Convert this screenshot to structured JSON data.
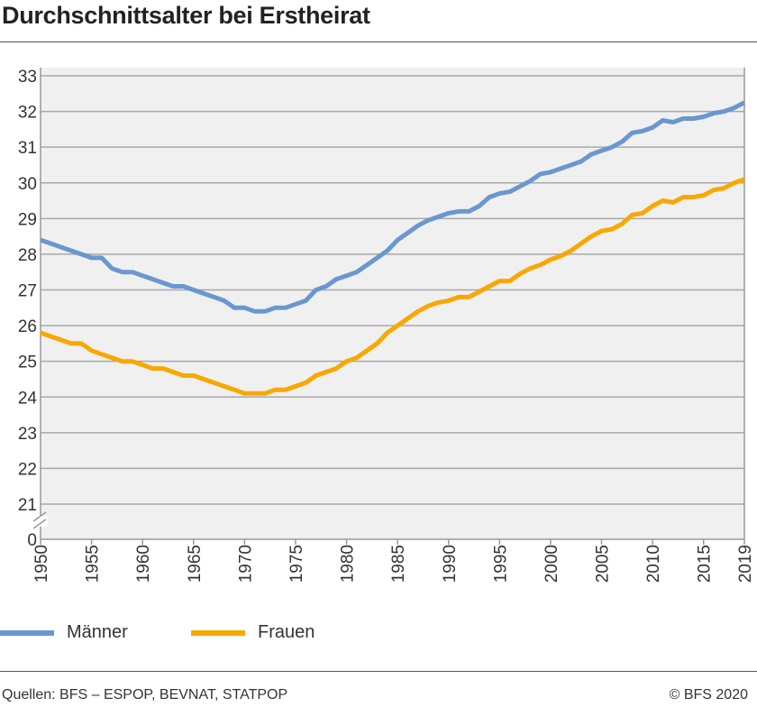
{
  "title": "Durchschnittsalter bei Erstheirat",
  "source": "Quellen: BFS – ESPOP, BEVNAT, STATPOP",
  "copyright": "© BFS 2020",
  "chart_data": {
    "type": "line",
    "title": "Durchschnittsalter bei Erstheirat",
    "xlabel": "",
    "ylabel": "",
    "x": [
      1950,
      1951,
      1952,
      1953,
      1954,
      1955,
      1956,
      1957,
      1958,
      1959,
      1960,
      1961,
      1962,
      1963,
      1964,
      1965,
      1966,
      1967,
      1968,
      1969,
      1970,
      1971,
      1972,
      1973,
      1974,
      1975,
      1976,
      1977,
      1978,
      1979,
      1980,
      1981,
      1982,
      1983,
      1984,
      1985,
      1986,
      1987,
      1988,
      1989,
      1990,
      1991,
      1992,
      1993,
      1994,
      1995,
      1996,
      1997,
      1998,
      1999,
      2000,
      2001,
      2002,
      2003,
      2004,
      2005,
      2006,
      2007,
      2008,
      2009,
      2010,
      2011,
      2012,
      2013,
      2014,
      2015,
      2016,
      2017,
      2018,
      2019
    ],
    "x_ticks": [
      "1950",
      "1955",
      "1960",
      "1965",
      "1970",
      "1975",
      "1980",
      "1985",
      "1990",
      "1995",
      "2000",
      "2005",
      "2010",
      "2015",
      "2019"
    ],
    "y_ticks": [
      "0",
      "21",
      "22",
      "23",
      "24",
      "25",
      "26",
      "27",
      "28",
      "29",
      "30",
      "31",
      "32",
      "33"
    ],
    "ylim": [
      21,
      33
    ],
    "y_axis_break": true,
    "grid": true,
    "legend": "bottom",
    "series": [
      {
        "name": "Männer",
        "color": "#6a97d0",
        "values": [
          28.4,
          28.3,
          28.2,
          28.1,
          28.0,
          27.9,
          27.9,
          27.6,
          27.5,
          27.5,
          27.4,
          27.3,
          27.2,
          27.1,
          27.1,
          27.0,
          26.9,
          26.8,
          26.7,
          26.5,
          26.5,
          26.4,
          26.4,
          26.5,
          26.5,
          26.6,
          26.7,
          27.0,
          27.1,
          27.3,
          27.4,
          27.5,
          27.7,
          27.9,
          28.1,
          28.4,
          28.6,
          28.8,
          28.95,
          29.05,
          29.15,
          29.2,
          29.2,
          29.35,
          29.6,
          29.7,
          29.75,
          29.9,
          30.05,
          30.25,
          30.3,
          30.4,
          30.5,
          30.6,
          30.8,
          30.9,
          31.0,
          31.15,
          31.4,
          31.45,
          31.55,
          31.75,
          31.7,
          31.8,
          31.8,
          31.85,
          31.95,
          32.0,
          32.1,
          32.25
        ]
      },
      {
        "name": "Frauen",
        "color": "#f8a800",
        "values": [
          25.8,
          25.7,
          25.6,
          25.5,
          25.5,
          25.3,
          25.2,
          25.1,
          25.0,
          25.0,
          24.9,
          24.8,
          24.8,
          24.7,
          24.6,
          24.6,
          24.5,
          24.4,
          24.3,
          24.2,
          24.1,
          24.1,
          24.1,
          24.2,
          24.2,
          24.3,
          24.4,
          24.6,
          24.7,
          24.8,
          25.0,
          25.1,
          25.3,
          25.5,
          25.8,
          26.0,
          26.2,
          26.4,
          26.55,
          26.65,
          26.7,
          26.8,
          26.8,
          26.95,
          27.1,
          27.25,
          27.25,
          27.45,
          27.6,
          27.7,
          27.85,
          27.95,
          28.1,
          28.3,
          28.5,
          28.65,
          28.7,
          28.85,
          29.1,
          29.15,
          29.35,
          29.5,
          29.45,
          29.6,
          29.6,
          29.65,
          29.8,
          29.85,
          30.0,
          30.1
        ]
      }
    ]
  }
}
